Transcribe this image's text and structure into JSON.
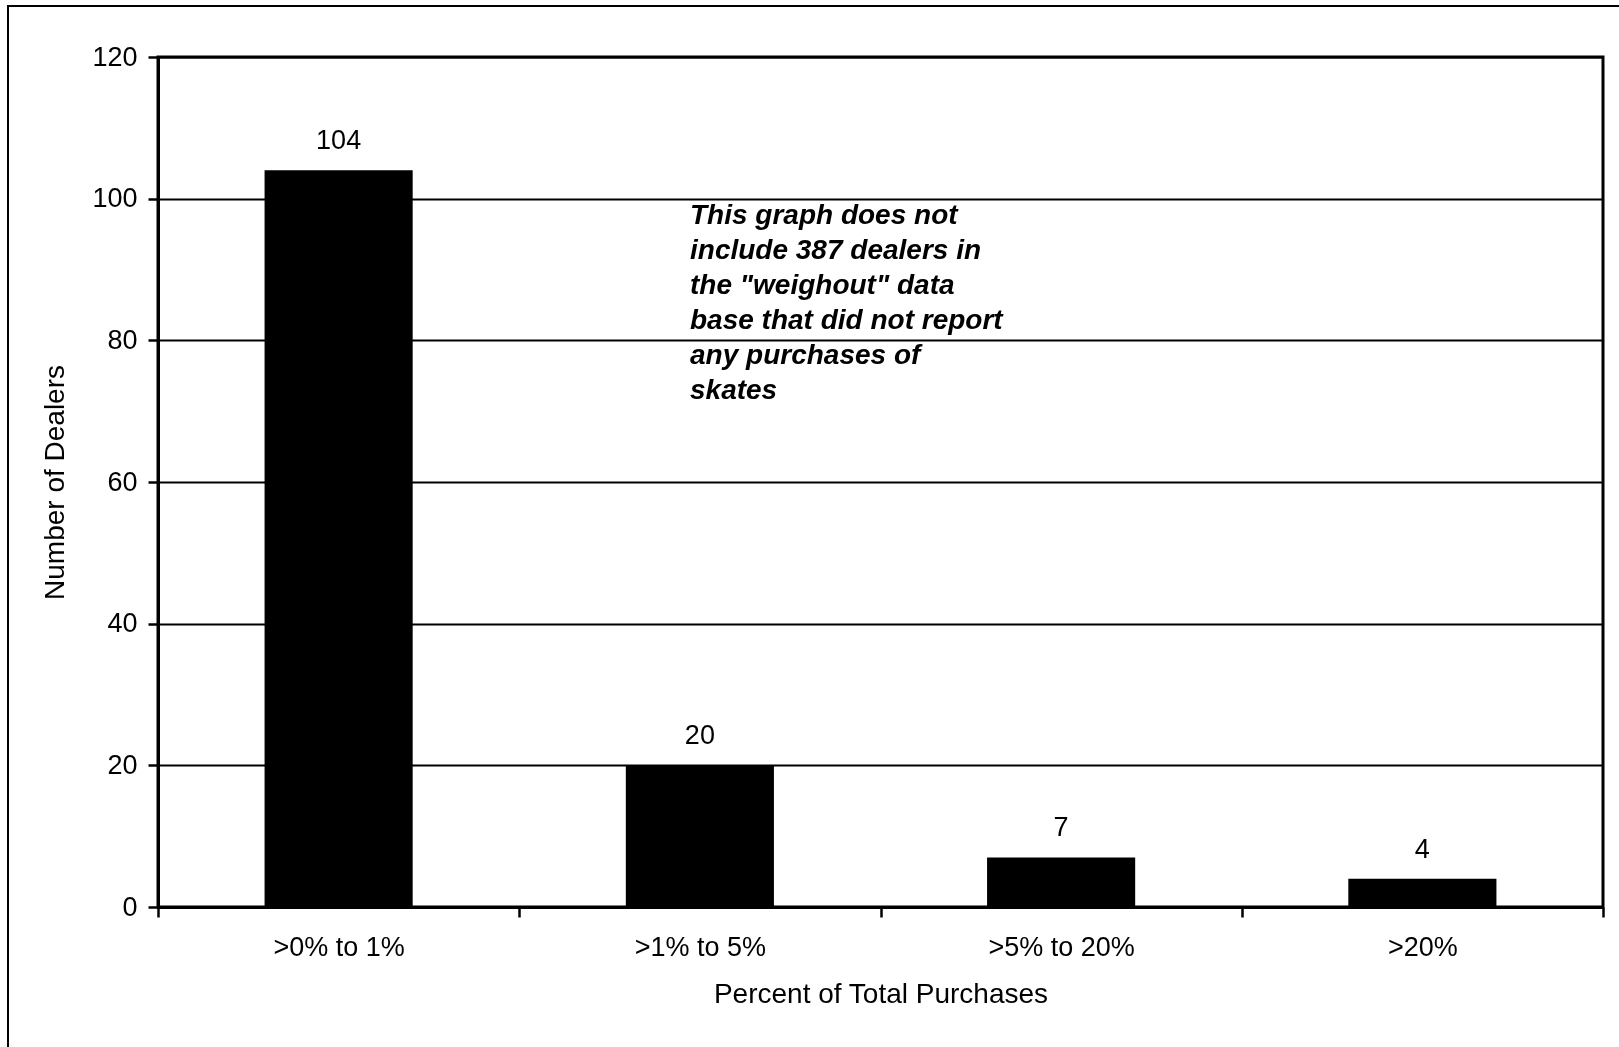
{
  "chart_data": {
    "type": "bar",
    "categories": [
      ">0% to 1%",
      ">1% to 5%",
      ">5% to 20%",
      ">20%"
    ],
    "values": [
      104,
      20,
      7,
      4
    ],
    "color": "#000000",
    "xlabel": "Percent of Total Purchases",
    "ylabel": "Number of Dealers",
    "ylim": [
      0,
      120
    ],
    "yticks": [
      0,
      20,
      40,
      60,
      80,
      100,
      120
    ],
    "grid": "y",
    "data_labels": true,
    "annotations": [
      "This graph does not\ninclude 387 dealers in\nthe \"weighout\" data\nbase that did not report\nany purchases of\nskates"
    ]
  }
}
